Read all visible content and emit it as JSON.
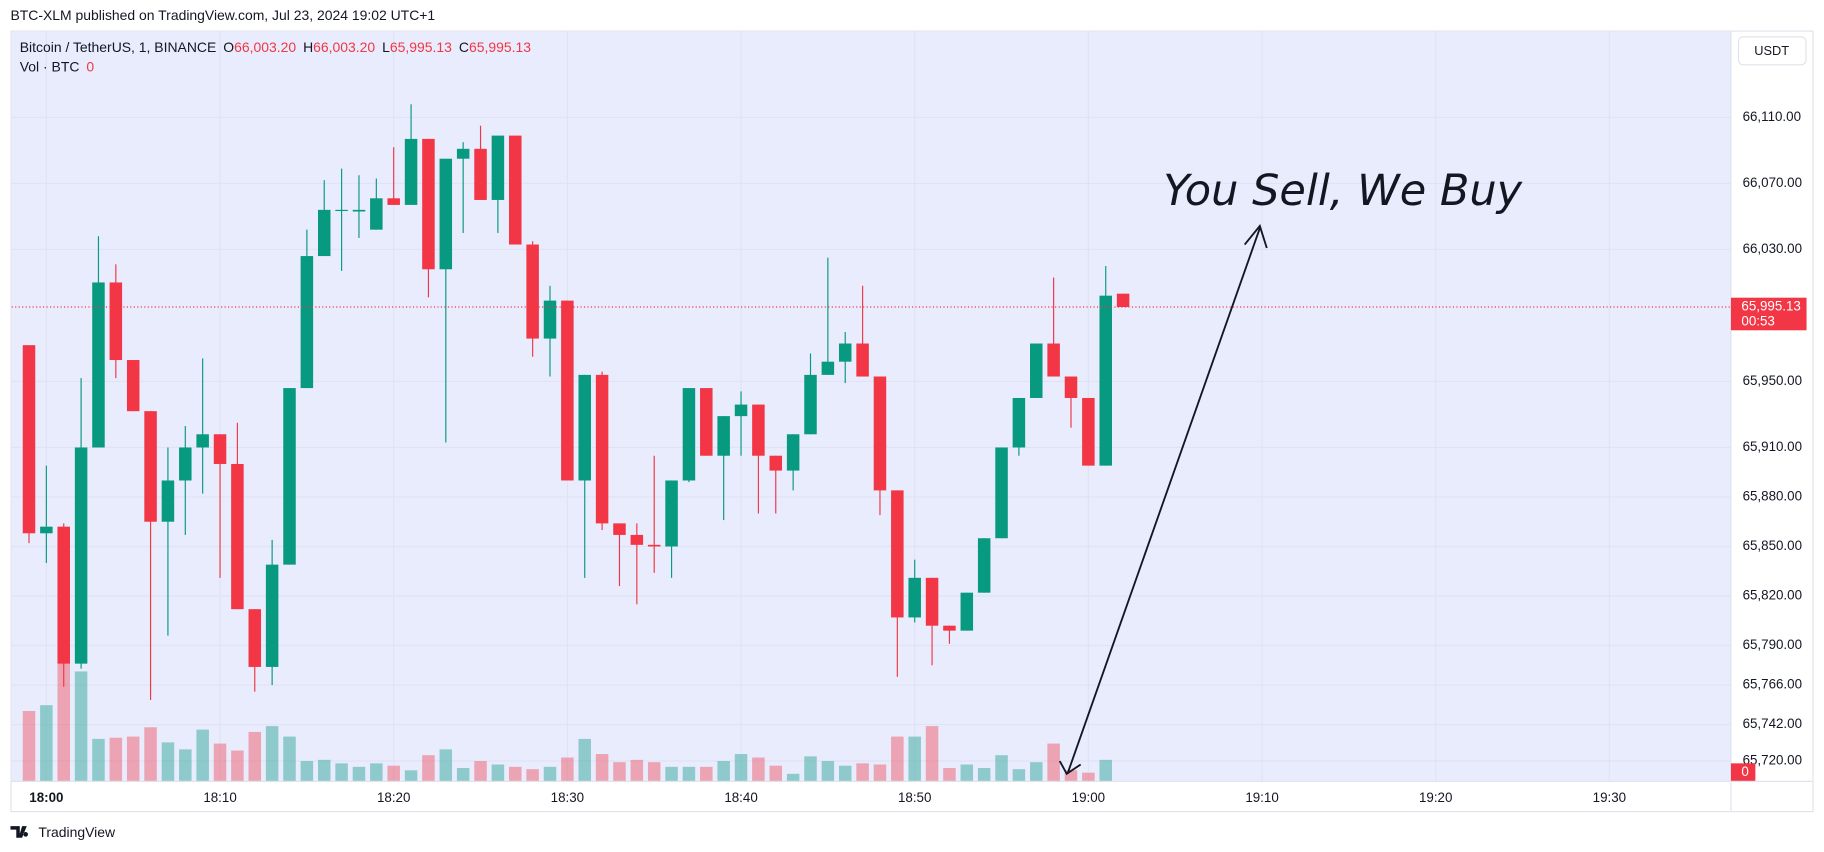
{
  "chart_data": {
    "type": "candlestick",
    "published": "BTC-XLM published on TradingView.com, Jul 23, 2024 19:02 UTC+1",
    "symbol": "Bitcoin / TetherUS, 1, BINANCE",
    "header_values": [
      {
        "prefix": "O",
        "value": 66003.2,
        "label": "66,003.20"
      },
      {
        "prefix": "H",
        "value": 66003.2,
        "label": "66,003.20"
      },
      {
        "prefix": "L",
        "value": 65995.13,
        "label": "65,995.13"
      },
      {
        "prefix": "C",
        "value": 65995.13,
        "label": "65,995.13"
      }
    ],
    "volume_title": "Vol · BTC",
    "currency": "USDT",
    "price_label": "65,995.13",
    "countdown": "00:53",
    "annotation": "You Sell, We Buy",
    "brand": "TradingView",
    "up_color": "#089981",
    "down_color": "#f23645",
    "x": [
      "17:59",
      "18:00",
      "18:01",
      "18:02",
      "18:03",
      "18:04",
      "18:05",
      "18:06",
      "18:07",
      "18:08",
      "18:09",
      "18:10",
      "18:11",
      "18:12",
      "18:13",
      "18:14",
      "18:15",
      "18:16",
      "18:17",
      "18:18",
      "18:19",
      "18:20",
      "18:21",
      "18:22",
      "18:23",
      "18:24",
      "18:25",
      "18:26",
      "18:27",
      "18:28",
      "18:29",
      "18:30",
      "18:31",
      "18:32",
      "18:33",
      "18:34",
      "18:35",
      "18:36",
      "18:37",
      "18:38",
      "18:39",
      "18:40",
      "18:41",
      "18:42",
      "18:43",
      "18:44",
      "18:45",
      "18:46",
      "18:47",
      "18:48",
      "18:49",
      "18:50",
      "18:51",
      "18:52",
      "18:53",
      "18:54",
      "18:55",
      "18:56",
      "18:57",
      "18:58",
      "18:59",
      "19:00",
      "19:01",
      "19:02"
    ],
    "open": [
      65972,
      65858,
      65862,
      65779,
      65910,
      66010,
      65963,
      65932,
      65865,
      65890,
      65910,
      65918,
      65900,
      65812,
      65777,
      65839,
      65946,
      66026,
      66054,
      66053,
      66042,
      66061,
      66057,
      66097,
      66018,
      66085,
      66091,
      66060,
      66099,
      66033,
      65976,
      65999,
      65890,
      65954,
      65864,
      65857,
      65851,
      65850,
      65890,
      65946,
      65905,
      65929,
      65936,
      65905,
      65896,
      65918,
      65954,
      65962,
      65973,
      65953,
      65884,
      65807,
      65831,
      65802,
      65799,
      65822,
      65855,
      65910,
      65940,
      65973,
      65953,
      65940,
      65899,
      66003.2
    ],
    "high": [
      65972,
      65899,
      65864,
      65952,
      66038,
      66021,
      65963,
      65932,
      65910,
      65923,
      65964,
      65918,
      65925,
      65812,
      65854,
      65946,
      66042,
      66072,
      66079,
      66075,
      66073,
      66092,
      66118,
      66097,
      66085,
      66095,
      66105,
      66099,
      66099,
      66035,
      66008,
      65999,
      65954,
      65956,
      65864,
      65864,
      65905,
      65890,
      65946,
      65946,
      65929,
      65944,
      65936,
      65905,
      65918,
      65967,
      66025,
      65980,
      66008,
      65953,
      65884,
      65842,
      65831,
      65802,
      65822,
      65855,
      65910,
      65940,
      65973,
      66013,
      65953,
      65940,
      66020,
      66003.2
    ],
    "low": [
      65852,
      65840,
      65765,
      65776,
      65910,
      65952,
      65932,
      65757,
      65796,
      65857,
      65882,
      65831,
      65812,
      65762,
      65766,
      65839,
      65946,
      66026,
      66017,
      66037,
      66042,
      66057,
      66057,
      66001,
      65913,
      66040,
      66060,
      66040,
      66033,
      65965,
      65953,
      65890,
      65831,
      65860,
      65826,
      65815,
      65834,
      65831,
      65889,
      65905,
      65866,
      65905,
      65870,
      65870,
      65884,
      65918,
      65954,
      65949,
      65953,
      65869,
      65771,
      65804,
      65778,
      65791,
      65799,
      65822,
      65855,
      65905,
      65940,
      65953,
      65922,
      65899,
      65899,
      65995.13
    ],
    "close": [
      65858,
      65862,
      65779,
      65910,
      66010,
      65963,
      65932,
      65865,
      65890,
      65910,
      65918,
      65900,
      65812,
      65777,
      65839,
      65946,
      66026,
      66054,
      66054,
      66054,
      66061,
      66057,
      66097,
      66018,
      66085,
      66091,
      66060,
      66099,
      66033,
      65976,
      65999,
      65890,
      65954,
      65864,
      65857,
      65851,
      65850,
      65890,
      65946,
      65905,
      65929,
      65936,
      65905,
      65896,
      65918,
      65954,
      65962,
      65973,
      65953,
      65884,
      65807,
      65831,
      65802,
      65799,
      65822,
      65855,
      65910,
      65940,
      65973,
      65953,
      65940,
      65899,
      66002,
      65995.13
    ],
    "volume": [
      60,
      65,
      161,
      94,
      36,
      37,
      38,
      46,
      33,
      27,
      44,
      32,
      26,
      42,
      47,
      38,
      17,
      18,
      15,
      12,
      15,
      13,
      9,
      22,
      27,
      11,
      17,
      14,
      12,
      10,
      12,
      20,
      36,
      23,
      16,
      18,
      16,
      12,
      12,
      12,
      17,
      23,
      20,
      13,
      6,
      21,
      17,
      13,
      15,
      14,
      38,
      38,
      47,
      11,
      14,
      11,
      22,
      10,
      16,
      32,
      9,
      7,
      18,
      0
    ],
    "volume_lim": [
      0,
      160
    ],
    "ylim": [
      65708,
      66162
    ],
    "yticks": [
      {
        "value": 66110,
        "label": "66,110.00"
      },
      {
        "value": 66070,
        "label": "66,070.00"
      },
      {
        "value": 66030,
        "label": "66,030.00"
      },
      {
        "value": 65950,
        "label": "65,950.00"
      },
      {
        "value": 65910,
        "label": "65,910.00"
      },
      {
        "value": 65880,
        "label": "65,880.00"
      },
      {
        "value": 65850,
        "label": "65,850.00"
      },
      {
        "value": 65820,
        "label": "65,820.00"
      },
      {
        "value": 65790,
        "label": "65,790.00"
      },
      {
        "value": 65766,
        "label": "65,766.00"
      },
      {
        "value": 65742,
        "label": "65,742.00"
      },
      {
        "value": 65720,
        "label": "65,720.00"
      }
    ],
    "xlim": [
      "17:58",
      "19:37"
    ],
    "xticks": [
      "18:00",
      "18:10",
      "18:20",
      "18:30",
      "18:40",
      "18:50",
      "19:00",
      "19:10",
      "19:20",
      "19:30"
    ],
    "grid": true
  }
}
